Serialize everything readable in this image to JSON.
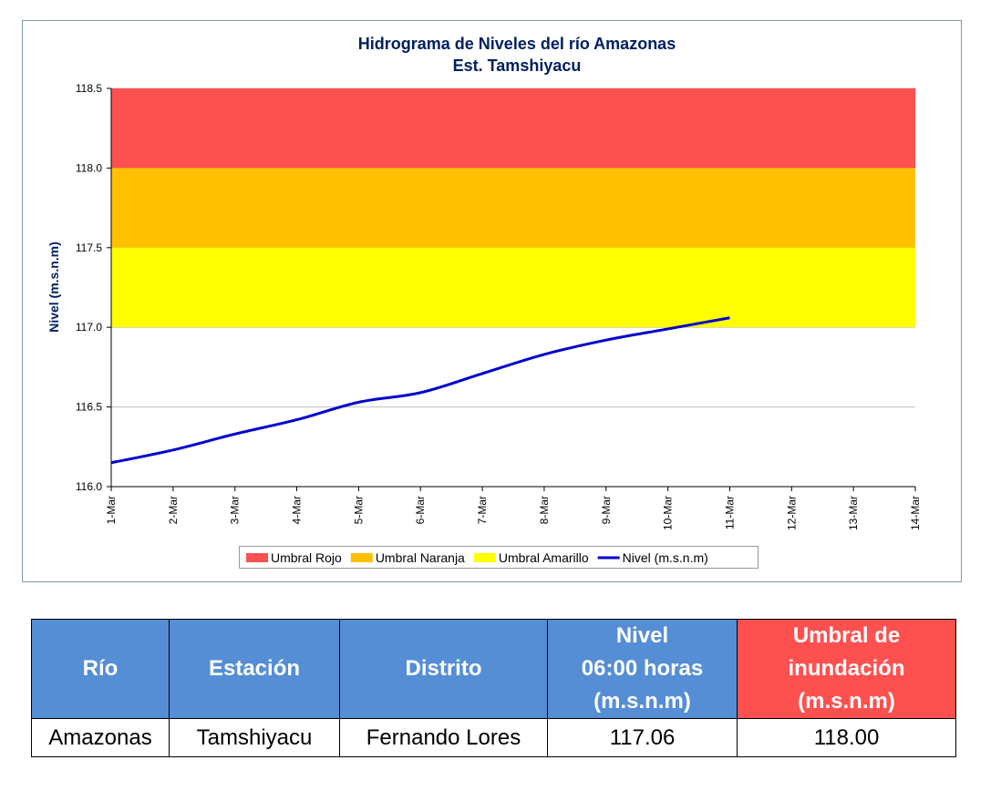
{
  "chart_data": {
    "type": "line",
    "title": "Hidrograma de Niveles del río Amazonas",
    "subtitle": "Est. Tamshiyacu",
    "y_label": "Nivel (m.s.n.m)",
    "categories": [
      "1-Mar",
      "2-Mar",
      "3-Mar",
      "4-Mar",
      "5-Mar",
      "6-Mar",
      "7-Mar",
      "8-Mar",
      "9-Mar",
      "10-Mar",
      "11-Mar",
      "12-Mar",
      "13-Mar",
      "14-Mar"
    ],
    "bands": [
      {
        "name": "Umbral Rojo",
        "color": "#ff5050",
        "from": 118,
        "to": 118.5
      },
      {
        "name": "Umbral Naranja",
        "color": "#ffc000",
        "from": 117.5,
        "to": 118
      },
      {
        "name": "Umbral Amarillo",
        "color": "#ffff00",
        "from": 117,
        "to": 117.5
      }
    ],
    "series": [
      {
        "name": "Nivel (m.s.n.m)",
        "color": "#0000cc",
        "values": [
          116.15,
          116.23,
          116.33,
          116.42,
          116.53,
          116.59,
          116.71,
          116.83,
          116.92,
          116.99,
          117.06,
          null,
          null,
          null
        ]
      }
    ],
    "ylim": [
      116,
      118.5
    ],
    "yticks": [
      {
        "value": 116,
        "label": "116.0"
      },
      {
        "value": 116.5,
        "label": "116.5"
      },
      {
        "value": 117,
        "label": "117.0"
      },
      {
        "value": 117.5,
        "label": "117.5"
      },
      {
        "value": 118,
        "label": "118.0"
      },
      {
        "value": 118.5,
        "label": "118.5"
      }
    ],
    "grid": true,
    "legend": "bottom"
  },
  "table": {
    "header": [
      "Río",
      "Estación",
      "Distrito",
      "Nivel\n06:00 horas\n(m.s.n.m)",
      "Umbral de\ninundación\n(m.s.n.m)"
    ],
    "rows": [
      [
        "Amazonas",
        "Tamshiyacu",
        "Fernando Lores",
        "117.06",
        "118.00"
      ]
    ]
  }
}
